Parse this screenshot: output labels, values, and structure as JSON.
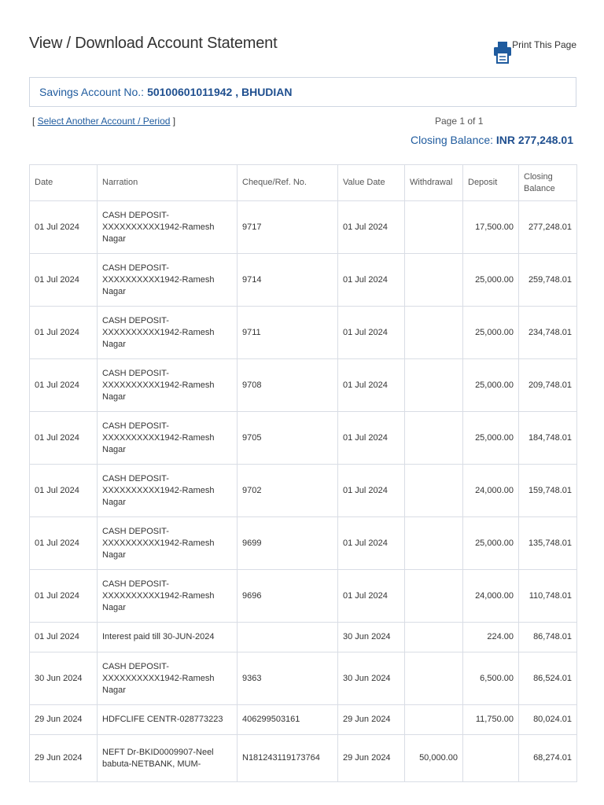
{
  "header": {
    "title": "View / Download Account Statement",
    "print_label": "Print This Page"
  },
  "account": {
    "prefix": "Savings Account No.:",
    "value": "50100601011942 , BHUDIAN"
  },
  "nav": {
    "open_bracket": "[ ",
    "select_link": "Select Another Account / Period",
    "close_bracket": " ]",
    "page_info": "Page 1 of 1"
  },
  "closing": {
    "label": "Closing Balance:",
    "value": "INR 277,248.01"
  },
  "table": {
    "headers": [
      "Date",
      "Narration",
      "Cheque/Ref. No.",
      "Value Date",
      "Withdrawal",
      "Deposit",
      "Closing Balance"
    ],
    "rows": [
      {
        "date": "01 Jul 2024",
        "narration": "CASH DEPOSIT-XXXXXXXXXX1942-Ramesh Nagar",
        "ref": "9717",
        "value_date": "01 Jul 2024",
        "withdrawal": "",
        "deposit": "17,500.00",
        "balance": "277,248.01"
      },
      {
        "date": "01 Jul 2024",
        "narration": "CASH DEPOSIT-XXXXXXXXXX1942-Ramesh Nagar",
        "ref": "9714",
        "value_date": "01 Jul 2024",
        "withdrawal": "",
        "deposit": "25,000.00",
        "balance": "259,748.01"
      },
      {
        "date": "01 Jul 2024",
        "narration": "CASH DEPOSIT-XXXXXXXXXX1942-Ramesh Nagar",
        "ref": "9711",
        "value_date": "01 Jul 2024",
        "withdrawal": "",
        "deposit": "25,000.00",
        "balance": "234,748.01"
      },
      {
        "date": "01 Jul 2024",
        "narration": "CASH DEPOSIT-XXXXXXXXXX1942-Ramesh Nagar",
        "ref": "9708",
        "value_date": "01 Jul 2024",
        "withdrawal": "",
        "deposit": "25,000.00",
        "balance": "209,748.01"
      },
      {
        "date": "01 Jul 2024",
        "narration": "CASH DEPOSIT-XXXXXXXXXX1942-Ramesh Nagar",
        "ref": "9705",
        "value_date": "01 Jul 2024",
        "withdrawal": "",
        "deposit": "25,000.00",
        "balance": "184,748.01"
      },
      {
        "date": "01 Jul 2024",
        "narration": "CASH DEPOSIT-XXXXXXXXXX1942-Ramesh Nagar",
        "ref": "9702",
        "value_date": "01 Jul 2024",
        "withdrawal": "",
        "deposit": "24,000.00",
        "balance": "159,748.01"
      },
      {
        "date": "01 Jul 2024",
        "narration": "CASH DEPOSIT-XXXXXXXXXX1942-Ramesh Nagar",
        "ref": "9699",
        "value_date": "01 Jul 2024",
        "withdrawal": "",
        "deposit": "25,000.00",
        "balance": "135,748.01"
      },
      {
        "date": "01 Jul 2024",
        "narration": "CASH DEPOSIT-XXXXXXXXXX1942-Ramesh Nagar",
        "ref": "9696",
        "value_date": "01 Jul 2024",
        "withdrawal": "",
        "deposit": "24,000.00",
        "balance": "110,748.01"
      },
      {
        "date": "01 Jul 2024",
        "narration": "Interest paid till 30-JUN-2024",
        "ref": "",
        "value_date": "30 Jun 2024",
        "withdrawal": "",
        "deposit": "224.00",
        "balance": "86,748.01"
      },
      {
        "date": "30 Jun 2024",
        "narration": "CASH DEPOSIT-XXXXXXXXXX1942-Ramesh Nagar",
        "ref": "9363",
        "value_date": "30 Jun 2024",
        "withdrawal": "",
        "deposit": "6,500.00",
        "balance": "86,524.01"
      },
      {
        "date": "29 Jun 2024",
        "narration": "HDFCLIFE CENTR-028773223",
        "ref": "406299503161",
        "value_date": "29 Jun 2024",
        "withdrawal": "",
        "deposit": "11,750.00",
        "balance": "80,024.01"
      },
      {
        "date": "29 Jun 2024",
        "narration": "NEFT Dr-BKID0009907-Neel babuta-NETBANK, MUM-",
        "ref": "N181243119173764",
        "value_date": "29 Jun 2024",
        "withdrawal": "50,000.00",
        "deposit": "",
        "balance": "68,274.01"
      }
    ]
  },
  "colors": {
    "accent": "#1f5b9e",
    "border": "#d9dde5",
    "text": "#333333"
  },
  "icons": {
    "print": "printer-icon"
  }
}
